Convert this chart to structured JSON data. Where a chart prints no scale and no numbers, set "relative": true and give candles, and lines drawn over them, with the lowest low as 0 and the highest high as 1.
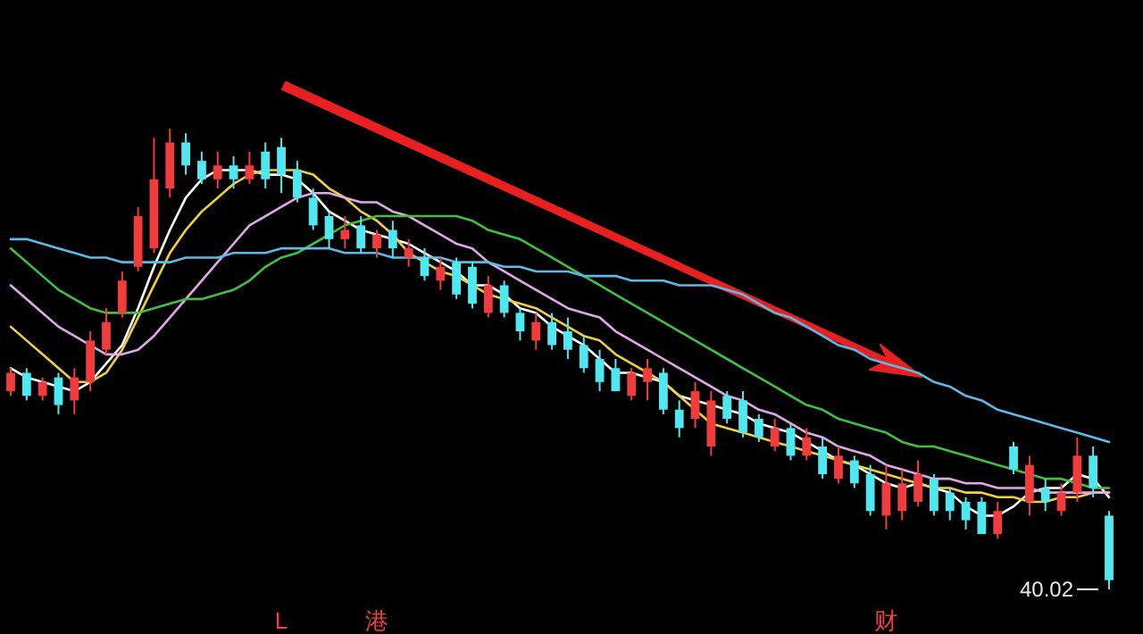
{
  "chart_data": {
    "type": "candlestick",
    "relative": true,
    "categories": [
      null,
      null,
      null,
      null,
      null,
      null,
      null,
      null,
      null,
      null,
      null,
      null,
      null,
      null,
      null,
      null,
      null,
      "L",
      null,
      null,
      null,
      null,
      null,
      "港",
      null,
      null,
      null,
      null,
      null,
      null,
      null,
      null,
      null,
      null,
      null,
      null,
      null,
      null,
      null,
      null,
      null,
      null,
      null,
      null,
      null,
      null,
      null,
      null,
      null,
      null,
      null,
      null,
      null,
      null,
      null,
      "财",
      null,
      null,
      null,
      null,
      null,
      null,
      null,
      null,
      null,
      null,
      null,
      null,
      null,
      null
    ],
    "ohlc": [
      [
        0.43,
        0.48,
        0.42,
        0.47
      ],
      [
        0.47,
        0.48,
        0.41,
        0.42
      ],
      [
        0.42,
        0.46,
        0.41,
        0.45
      ],
      [
        0.46,
        0.47,
        0.38,
        0.4
      ],
      [
        0.41,
        0.48,
        0.38,
        0.46
      ],
      [
        0.45,
        0.56,
        0.43,
        0.54
      ],
      [
        0.52,
        0.61,
        0.51,
        0.58
      ],
      [
        0.6,
        0.69,
        0.59,
        0.67
      ],
      [
        0.7,
        0.83,
        0.69,
        0.81
      ],
      [
        0.74,
        0.98,
        0.73,
        0.89
      ],
      [
        0.87,
        1,
        0.85,
        0.97
      ],
      [
        0.97,
        0.99,
        0.9,
        0.92
      ],
      [
        0.93,
        0.95,
        0.88,
        0.89
      ],
      [
        0.89,
        0.95,
        0.87,
        0.92
      ],
      [
        0.92,
        0.94,
        0.87,
        0.89
      ],
      [
        0.89,
        0.95,
        0.88,
        0.92
      ],
      [
        0.95,
        0.97,
        0.87,
        0.89
      ],
      [
        0.96,
        0.98,
        0.86,
        0.9
      ],
      [
        0.91,
        0.93,
        0.84,
        0.85
      ],
      [
        0.85,
        0.87,
        0.78,
        0.79
      ],
      [
        0.81,
        0.82,
        0.74,
        0.76
      ],
      [
        0.76,
        0.81,
        0.74,
        0.78
      ],
      [
        0.79,
        0.81,
        0.73,
        0.74
      ],
      [
        0.74,
        0.78,
        0.72,
        0.77
      ],
      [
        0.78,
        0.8,
        0.72,
        0.74
      ],
      [
        0.72,
        0.76,
        0.7,
        0.74
      ],
      [
        0.72,
        0.74,
        0.67,
        0.68
      ],
      [
        0.67,
        0.72,
        0.65,
        0.7
      ],
      [
        0.71,
        0.72,
        0.63,
        0.64
      ],
      [
        0.7,
        0.71,
        0.61,
        0.62
      ],
      [
        0.6,
        0.68,
        0.59,
        0.66
      ],
      [
        0.66,
        0.67,
        0.59,
        0.6
      ],
      [
        0.6,
        0.61,
        0.54,
        0.56
      ],
      [
        0.54,
        0.6,
        0.52,
        0.58
      ],
      [
        0.58,
        0.6,
        0.52,
        0.53
      ],
      [
        0.56,
        0.59,
        0.5,
        0.52
      ],
      [
        0.53,
        0.55,
        0.47,
        0.48
      ],
      [
        0.5,
        0.52,
        0.43,
        0.45
      ],
      [
        0.48,
        0.5,
        0.43,
        0.43
      ],
      [
        0.42,
        0.48,
        0.41,
        0.47
      ],
      [
        0.45,
        0.5,
        0.41,
        0.48
      ],
      [
        0.47,
        0.48,
        0.38,
        0.39
      ],
      [
        0.39,
        0.41,
        0.33,
        0.35
      ],
      [
        0.37,
        0.45,
        0.35,
        0.43
      ],
      [
        0.31,
        0.43,
        0.29,
        0.41
      ],
      [
        0.42,
        0.43,
        0.36,
        0.37
      ],
      [
        0.41,
        0.43,
        0.33,
        0.34
      ],
      [
        0.37,
        0.38,
        0.32,
        0.33
      ],
      [
        0.31,
        0.37,
        0.3,
        0.35
      ],
      [
        0.35,
        0.36,
        0.28,
        0.29
      ],
      [
        0.29,
        0.35,
        0.28,
        0.33
      ],
      [
        0.31,
        0.33,
        0.24,
        0.25
      ],
      [
        0.24,
        0.31,
        0.23,
        0.29
      ],
      [
        0.28,
        0.29,
        0.22,
        0.23
      ],
      [
        0.25,
        0.27,
        0.16,
        0.17
      ],
      [
        0.16,
        0.27,
        0.13,
        0.23
      ],
      [
        0.17,
        0.26,
        0.15,
        0.23
      ],
      [
        0.19,
        0.28,
        0.18,
        0.25
      ],
      [
        0.24,
        0.25,
        0.16,
        0.17
      ],
      [
        0.21,
        0.22,
        0.15,
        0.17
      ],
      [
        0.19,
        0.2,
        0.13,
        0.15
      ],
      [
        0.19,
        0.2,
        0.12,
        0.12
      ],
      [
        0.12,
        0.19,
        0.11,
        0.17
      ],
      [
        0.31,
        0.32,
        0.25,
        0.26
      ],
      [
        0.19,
        0.29,
        0.16,
        0.27
      ],
      [
        0.22,
        0.24,
        0.17,
        0.19
      ],
      [
        0.17,
        0.23,
        0.16,
        0.21
      ],
      [
        0.21,
        0.33,
        0.19,
        0.29
      ],
      [
        0.29,
        0.31,
        0.2,
        0.22
      ],
      [
        0.16,
        0.17,
        0,
        0.02
      ]
    ],
    "colors": [
      "#f03c3c",
      "#50e8f0",
      "#f03c3c",
      "#50e8f0",
      "#f03c3c",
      "#f03c3c",
      "#f03c3c",
      "#f03c3c",
      "#f03c3c",
      "#f03c3c",
      "#f03c3c",
      "#50e8f0",
      "#50e8f0",
      "#f03c3c",
      "#50e8f0",
      "#f03c3c",
      "#50e8f0",
      "#50e8f0",
      "#50e8f0",
      "#50e8f0",
      "#50e8f0",
      "#f03c3c",
      "#50e8f0",
      "#f03c3c",
      "#50e8f0",
      "#f03c3c",
      "#50e8f0",
      "#f03c3c",
      "#50e8f0",
      "#50e8f0",
      "#f03c3c",
      "#50e8f0",
      "#50e8f0",
      "#f03c3c",
      "#50e8f0",
      "#50e8f0",
      "#50e8f0",
      "#50e8f0",
      "#50e8f0",
      "#f03c3c",
      "#f03c3c",
      "#50e8f0",
      "#50e8f0",
      "#f03c3c",
      "#f03c3c",
      "#50e8f0",
      "#50e8f0",
      "#50e8f0",
      "#f03c3c",
      "#50e8f0",
      "#f03c3c",
      "#50e8f0",
      "#f03c3c",
      "#50e8f0",
      "#50e8f0",
      "#f03c3c",
      "#f03c3c",
      "#f03c3c",
      "#50e8f0",
      "#50e8f0",
      "#50e8f0",
      "#50e8f0",
      "#f03c3c",
      "#50e8f0",
      "#f03c3c",
      "#50e8f0",
      "#f03c3c",
      "#f03c3c",
      "#50e8f0",
      "#50e8f0"
    ],
    "series": [
      {
        "type": "line",
        "color": "#ffffff",
        "values": [
          0.48,
          0.46,
          0.45,
          0.44,
          0.43,
          0.45,
          0.49,
          0.53,
          0.61,
          0.7,
          0.78,
          0.85,
          0.89,
          0.91,
          0.91,
          0.91,
          0.9,
          0.9,
          0.89,
          0.86,
          0.82,
          0.8,
          0.78,
          0.77,
          0.76,
          0.75,
          0.73,
          0.71,
          0.69,
          0.66,
          0.66,
          0.64,
          0.61,
          0.6,
          0.57,
          0.55,
          0.53,
          0.5,
          0.47,
          0.47,
          0.46,
          0.45,
          0.42,
          0.41,
          0.4,
          0.39,
          0.38,
          0.36,
          0.35,
          0.34,
          0.32,
          0.3,
          0.28,
          0.27,
          0.25,
          0.23,
          0.22,
          0.23,
          0.22,
          0.21,
          0.18,
          0.16,
          0.16,
          0.18,
          0.21,
          0.22,
          0.22,
          0.25,
          0.24,
          0.2
        ]
      },
      {
        "type": "line",
        "color": "#f0d040",
        "values": [
          0.57,
          0.54,
          0.51,
          0.48,
          0.45,
          0.45,
          0.47,
          0.52,
          0.59,
          0.66,
          0.73,
          0.78,
          0.82,
          0.85,
          0.88,
          0.9,
          0.91,
          0.91,
          0.91,
          0.9,
          0.87,
          0.85,
          0.82,
          0.8,
          0.77,
          0.73,
          0.71,
          0.69,
          0.68,
          0.66,
          0.64,
          0.63,
          0.62,
          0.61,
          0.59,
          0.57,
          0.55,
          0.54,
          0.51,
          0.49,
          0.47,
          0.45,
          0.42,
          0.39,
          0.36,
          0.35,
          0.34,
          0.33,
          0.32,
          0.31,
          0.3,
          0.29,
          0.28,
          0.27,
          0.26,
          0.25,
          0.24,
          0.23,
          0.22,
          0.22,
          0.21,
          0.21,
          0.2,
          0.2,
          0.19,
          0.19,
          0.2,
          0.2,
          0.21,
          0.21
        ]
      },
      {
        "type": "line",
        "color": "#e0a8e8",
        "values": [
          0.66,
          0.63,
          0.6,
          0.57,
          0.55,
          0.53,
          0.51,
          0.51,
          0.52,
          0.55,
          0.59,
          0.63,
          0.67,
          0.71,
          0.75,
          0.79,
          0.81,
          0.83,
          0.85,
          0.86,
          0.86,
          0.85,
          0.84,
          0.84,
          0.82,
          0.81,
          0.79,
          0.77,
          0.75,
          0.74,
          0.71,
          0.69,
          0.67,
          0.65,
          0.63,
          0.61,
          0.6,
          0.59,
          0.56,
          0.54,
          0.52,
          0.5,
          0.48,
          0.46,
          0.44,
          0.42,
          0.41,
          0.39,
          0.38,
          0.36,
          0.34,
          0.33,
          0.31,
          0.3,
          0.29,
          0.27,
          0.26,
          0.25,
          0.24,
          0.24,
          0.23,
          0.23,
          0.22,
          0.22,
          0.22,
          0.21,
          0.21,
          0.21,
          0.21,
          0.21
        ]
      },
      {
        "type": "line",
        "color": "#40c040",
        "values": [
          0.74,
          0.71,
          0.68,
          0.65,
          0.63,
          0.61,
          0.6,
          0.6,
          0.6,
          0.61,
          0.62,
          0.63,
          0.63,
          0.64,
          0.65,
          0.67,
          0.7,
          0.72,
          0.73,
          0.75,
          0.77,
          0.79,
          0.8,
          0.81,
          0.81,
          0.81,
          0.81,
          0.81,
          0.81,
          0.8,
          0.78,
          0.77,
          0.76,
          0.74,
          0.72,
          0.7,
          0.68,
          0.66,
          0.64,
          0.62,
          0.6,
          0.58,
          0.56,
          0.54,
          0.52,
          0.5,
          0.48,
          0.46,
          0.44,
          0.42,
          0.4,
          0.39,
          0.37,
          0.36,
          0.35,
          0.34,
          0.32,
          0.31,
          0.31,
          0.3,
          0.29,
          0.28,
          0.27,
          0.26,
          0.25,
          0.24,
          0.24,
          0.23,
          0.22,
          0.22
        ]
      },
      {
        "type": "line",
        "color": "#60b8e8",
        "values": [
          0.76,
          0.76,
          0.75,
          0.74,
          0.73,
          0.72,
          0.72,
          0.71,
          0.71,
          0.71,
          0.71,
          0.72,
          0.72,
          0.72,
          0.73,
          0.73,
          0.73,
          0.74,
          0.74,
          0.74,
          0.74,
          0.73,
          0.73,
          0.73,
          0.72,
          0.72,
          0.72,
          0.72,
          0.71,
          0.71,
          0.71,
          0.7,
          0.7,
          0.69,
          0.69,
          0.69,
          0.68,
          0.68,
          0.68,
          0.67,
          0.67,
          0.67,
          0.66,
          0.66,
          0.66,
          0.65,
          0.64,
          0.62,
          0.6,
          0.59,
          0.57,
          0.55,
          0.53,
          0.52,
          0.5,
          0.49,
          0.48,
          0.47,
          0.45,
          0.44,
          0.42,
          0.41,
          0.39,
          0.38,
          0.37,
          0.36,
          0.35,
          0.34,
          0.33,
          0.32
        ]
      }
    ],
    "annotations": [
      "40.02"
    ]
  }
}
